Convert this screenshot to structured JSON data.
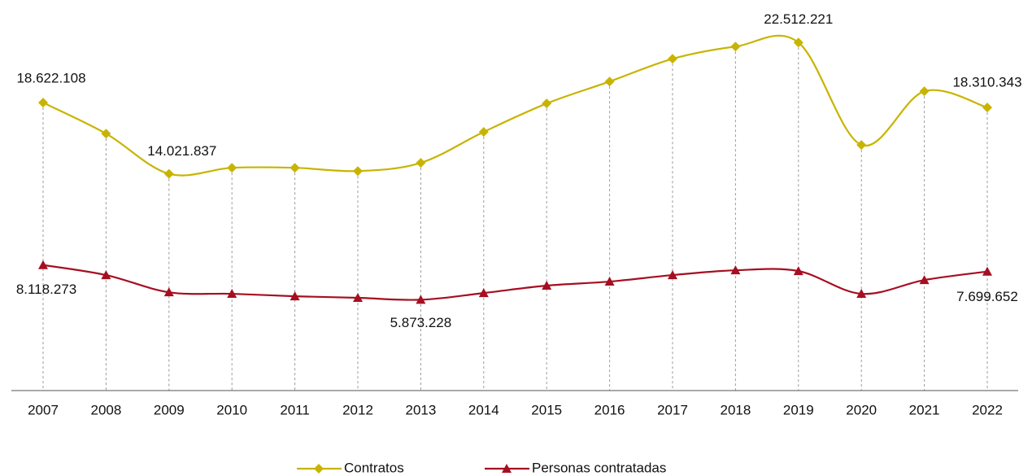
{
  "chart_data": {
    "type": "line",
    "categories": [
      "2007",
      "2008",
      "2009",
      "2010",
      "2011",
      "2012",
      "2013",
      "2014",
      "2015",
      "2016",
      "2017",
      "2018",
      "2019",
      "2020",
      "2021",
      "2022"
    ],
    "series": [
      {
        "name": "Contratos",
        "color": "#c8b400",
        "marker": "diamond",
        "values": [
          18622108,
          16620000,
          14021837,
          14410000,
          14410000,
          14200000,
          14730000,
          16730000,
          18570000,
          19990000,
          21460000,
          22250000,
          22512221,
          15890000,
          19360000,
          18310343
        ],
        "value_labels": [
          "18.622.108",
          null,
          "14.021.837",
          null,
          null,
          null,
          null,
          null,
          null,
          null,
          null,
          null,
          "22.512.221",
          null,
          null,
          "18.310.343"
        ]
      },
      {
        "name": "Personas contratadas",
        "color": "#a50f21",
        "marker": "triangle",
        "values": [
          8118273,
          7470000,
          6360000,
          6260000,
          6100000,
          6000000,
          5873228,
          6310000,
          6790000,
          7050000,
          7470000,
          7780000,
          7730000,
          6260000,
          7150000,
          7699652
        ],
        "value_labels": [
          "8.118.273",
          null,
          null,
          null,
          null,
          null,
          "5.873.228",
          null,
          null,
          null,
          null,
          null,
          null,
          null,
          null,
          "7.699.652"
        ]
      }
    ],
    "ylim": [
      0,
      24000000
    ],
    "smooth": true
  }
}
